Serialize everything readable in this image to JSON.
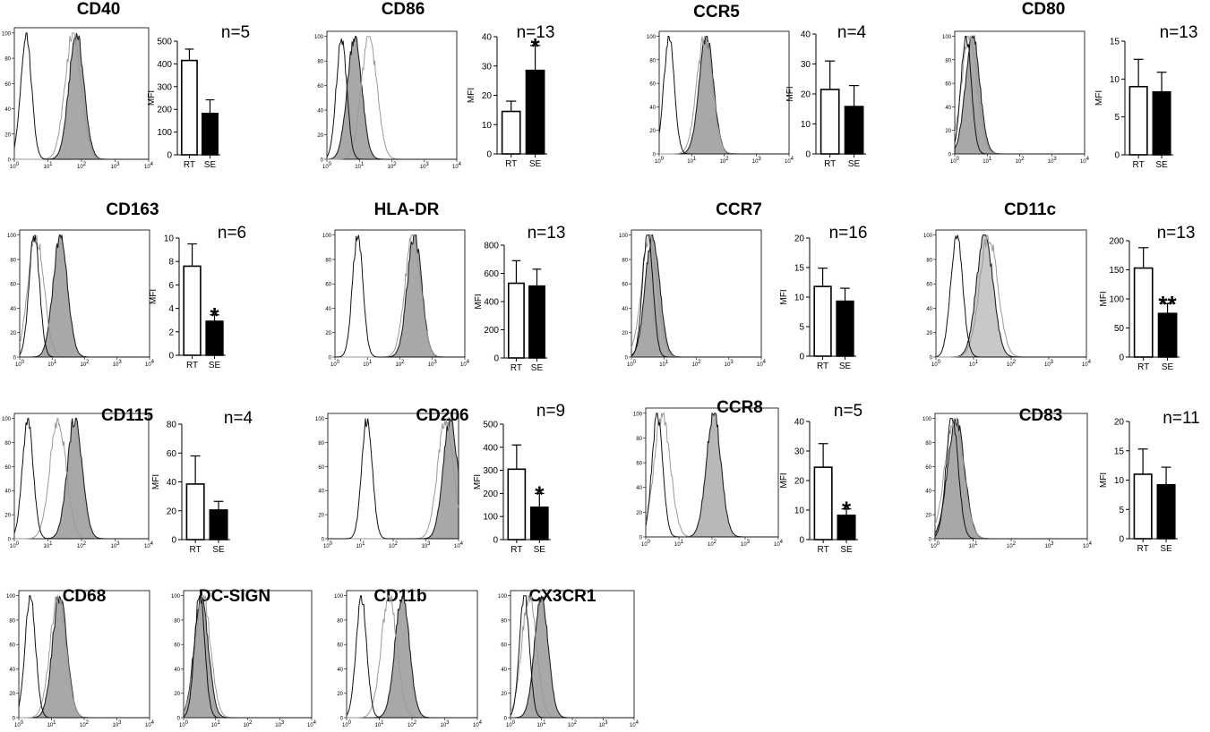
{
  "figure": {
    "bar_ylabel": "MFI",
    "bar_categories": [
      "RT",
      "SE"
    ],
    "hist_yticks": [
      "0",
      "20",
      "40",
      "60",
      "80",
      "100"
    ],
    "hist_xticks": [
      "10",
      "10",
      "10",
      "10",
      "10"
    ],
    "hist_xtick_exponents": [
      "0",
      "1",
      "2",
      "3",
      "4"
    ]
  },
  "chart_data": [
    {
      "marker": "CD40",
      "type": "histogram+bar",
      "n_label": "n=5",
      "significance": "",
      "categories": [
        "RT",
        "SE"
      ],
      "values": [
        415,
        182
      ],
      "errors": [
        50,
        60
      ],
      "ylim": [
        0,
        500
      ],
      "yticks": [
        0,
        100,
        200,
        300,
        400,
        500
      ],
      "histogram": {
        "isotype_peak_log": 0.35,
        "rt_peak_log": 1.75,
        "se_peak_log": 1.85,
        "se_color": "#a8a8a8"
      }
    },
    {
      "marker": "CD86",
      "type": "histogram+bar",
      "n_label": "n=13",
      "significance": "*",
      "categories": [
        "RT",
        "SE"
      ],
      "values": [
        14.5,
        28.5
      ],
      "errors": [
        3.5,
        8.5
      ],
      "ylim": [
        0,
        40
      ],
      "yticks": [
        0,
        10,
        20,
        30,
        40
      ],
      "histogram": {
        "isotype_peak_log": 0.45,
        "rt_peak_log": 1.3,
        "se_peak_log": 0.85,
        "se_color": "#a8a8a8"
      }
    },
    {
      "marker": "CCR5",
      "type": "histogram+bar",
      "n_label": "n=4",
      "significance": "",
      "categories": [
        "RT",
        "SE"
      ],
      "values": [
        21.5,
        15.8
      ],
      "errors": [
        9.5,
        7
      ],
      "ylim": [
        0,
        40
      ],
      "yticks": [
        0,
        10,
        20,
        30,
        40
      ],
      "histogram": {
        "isotype_peak_log": 0.3,
        "rt_peak_log": 1.4,
        "se_peak_log": 1.45,
        "se_color": "#a8a8a8"
      }
    },
    {
      "marker": "CD80",
      "type": "histogram+bar",
      "n_label": "n=13",
      "significance": "",
      "categories": [
        "RT",
        "SE"
      ],
      "values": [
        9,
        8.3
      ],
      "errors": [
        3.6,
        2.6
      ],
      "ylim": [
        0,
        15
      ],
      "yticks": [
        0,
        5,
        10,
        15
      ],
      "histogram": {
        "isotype_peak_log": 0.35,
        "rt_peak_log": 0.45,
        "se_peak_log": 0.55,
        "se_color": "#a8a8a8"
      }
    },
    {
      "marker": "CD163",
      "type": "histogram+bar",
      "n_label": "n=6",
      "significance": "*",
      "categories": [
        "RT",
        "SE"
      ],
      "values": [
        7.6,
        2.9
      ],
      "errors": [
        1.9,
        0.55
      ],
      "ylim": [
        0,
        10
      ],
      "yticks": [
        0,
        2,
        4,
        6,
        8,
        10
      ],
      "histogram": {
        "isotype_peak_log": 0.45,
        "rt_peak_log": 0.5,
        "se_peak_log": 1.25,
        "se_color": "#a8a8a8"
      }
    },
    {
      "marker": "HLA-DR",
      "type": "histogram+bar",
      "n_label": "n=13",
      "significance": "",
      "categories": [
        "RT",
        "SE"
      ],
      "values": [
        530,
        510
      ],
      "errors": [
        160,
        120
      ],
      "ylim": [
        0,
        800
      ],
      "yticks": [
        0,
        200,
        400,
        600,
        800
      ],
      "histogram": {
        "isotype_peak_log": 0.7,
        "rt_peak_log": 2.4,
        "se_peak_log": 2.45,
        "se_color": "#a8a8a8"
      }
    },
    {
      "marker": "CCR7",
      "type": "histogram+bar",
      "n_label": "n=16",
      "significance": "",
      "categories": [
        "RT",
        "SE"
      ],
      "values": [
        11.8,
        9.3
      ],
      "errors": [
        3.1,
        2.2
      ],
      "ylim": [
        0,
        20
      ],
      "yticks": [
        0,
        5,
        10,
        15,
        20
      ],
      "histogram": {
        "isotype_peak_log": 0.5,
        "rt_peak_log": 0.55,
        "se_peak_log": 0.65,
        "se_color": "#a8a8a8"
      }
    },
    {
      "marker": "CD11c",
      "type": "histogram+bar",
      "n_label": "n=13",
      "significance": "**",
      "categories": [
        "RT",
        "SE"
      ],
      "values": [
        153,
        75
      ],
      "errors": [
        35,
        17
      ],
      "ylim": [
        0,
        200
      ],
      "yticks": [
        0,
        50,
        100,
        150,
        200
      ],
      "histogram": {
        "isotype_peak_log": 0.55,
        "rt_peak_log": 1.4,
        "se_peak_log": 1.3,
        "se_color": "#c8c8c8"
      }
    },
    {
      "marker": "CD115",
      "type": "histogram+bar",
      "n_label": "n=4",
      "significance": "",
      "categories": [
        "RT",
        "SE"
      ],
      "values": [
        38.5,
        20.5
      ],
      "errors": [
        19.5,
        6
      ],
      "ylim": [
        0,
        80
      ],
      "yticks": [
        0,
        20,
        40,
        60,
        80
      ],
      "histogram": {
        "isotype_peak_log": 0.4,
        "rt_peak_log": 1.3,
        "se_peak_log": 1.8,
        "se_color": "#a8a8a8"
      }
    },
    {
      "marker": "CD206",
      "type": "histogram+bar",
      "n_label": "n=9",
      "significance": "*",
      "categories": [
        "RT",
        "SE"
      ],
      "values": [
        305,
        140
      ],
      "errors": [
        105,
        60
      ],
      "ylim": [
        0,
        500
      ],
      "yticks": [
        0,
        100,
        200,
        300,
        400,
        500
      ],
      "histogram": {
        "isotype_peak_log": 1.2,
        "rt_peak_log": 3.6,
        "se_peak_log": 3.75,
        "se_color": "#a8a8a8"
      }
    },
    {
      "marker": "CCR8",
      "type": "histogram+bar",
      "n_label": "n=5",
      "significance": "*",
      "categories": [
        "RT",
        "SE"
      ],
      "values": [
        24.5,
        8.2
      ],
      "errors": [
        8,
        2.2
      ],
      "ylim": [
        0,
        40
      ],
      "yticks": [
        0,
        10,
        20,
        30,
        40
      ],
      "histogram": {
        "isotype_peak_log": 0.35,
        "rt_peak_log": 0.5,
        "se_peak_log": 2.05,
        "se_color": "#b8b8b8"
      }
    },
    {
      "marker": "CD83",
      "type": "histogram+bar",
      "n_label": "n=11",
      "significance": "",
      "categories": [
        "RT",
        "SE"
      ],
      "values": [
        11,
        9.2
      ],
      "errors": [
        4.3,
        3
      ],
      "ylim": [
        0,
        20
      ],
      "yticks": [
        0,
        5,
        10,
        15,
        20
      ],
      "histogram": {
        "isotype_peak_log": 0.45,
        "rt_peak_log": 0.5,
        "se_peak_log": 0.55,
        "se_color": "#a8a8a8"
      }
    },
    {
      "marker": "CD68",
      "type": "histogram",
      "histogram": {
        "isotype_peak_log": 0.35,
        "rt_peak_log": 1.2,
        "se_peak_log": 1.25,
        "se_color": "#a8a8a8"
      }
    },
    {
      "marker": "DC-SIGN",
      "type": "histogram",
      "histogram": {
        "isotype_peak_log": 0.5,
        "rt_peak_log": 0.6,
        "se_peak_log": 0.55,
        "se_color": "#a8a8a8"
      }
    },
    {
      "marker": "CD11b",
      "type": "histogram",
      "histogram": {
        "isotype_peak_log": 0.45,
        "rt_peak_log": 1.3,
        "se_peak_log": 1.7,
        "se_color": "#a8a8a8"
      }
    },
    {
      "marker": "CX3CR1",
      "type": "histogram",
      "histogram": {
        "isotype_peak_log": 0.45,
        "rt_peak_log": 0.6,
        "se_peak_log": 1.0,
        "se_color": "#a8a8a8"
      }
    }
  ]
}
